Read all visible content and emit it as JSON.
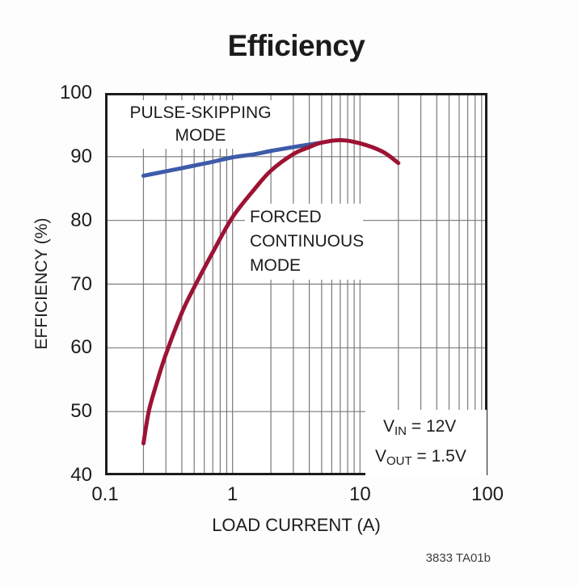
{
  "title": "Efficiency",
  "footnote": "3833 TA01b",
  "colors": {
    "pulse_skipping": "#3d5ba8",
    "forced_continuous": "#9d1333",
    "grid": "#7a7a7a",
    "axis": "#1c1c1c",
    "background": "#fdfdfd",
    "plot_background": "#ffffff"
  },
  "labels": {
    "pulse_skipping_line1": "PULSE-SKIPPING",
    "pulse_skipping_line2": "MODE",
    "forced_line1": "FORCED",
    "forced_line2": "CONTINUOUS",
    "forced_line3": "MODE"
  },
  "annotation": {
    "line1": {
      "pre": "V",
      "sub": "IN",
      "post": " = 12V"
    },
    "line2": {
      "pre": "V",
      "sub": "OUT",
      "post": " = 1.5V"
    }
  },
  "chart_data": {
    "type": "line",
    "title": "Efficiency",
    "xlabel": "LOAD CURRENT (A)",
    "ylabel": "EFFICIENCY (%)",
    "x_scale": "log",
    "xlim": [
      0.1,
      100
    ],
    "ylim": [
      40,
      100
    ],
    "x_ticks": [
      "0.1",
      "1",
      "10",
      "100"
    ],
    "y_ticks": [
      100,
      90,
      80,
      70,
      60,
      50,
      40
    ],
    "grid": true,
    "legend_position": "in-plot text labels",
    "series": [
      {
        "name": "PULSE-SKIPPING MODE",
        "color": "#3d5ba8",
        "x": [
          0.2,
          0.3,
          0.4,
          0.5,
          0.7,
          1,
          1.5,
          2,
          3,
          4,
          5
        ],
        "y": [
          87,
          87.7,
          88.2,
          88.6,
          89.2,
          89.9,
          90.4,
          90.9,
          91.5,
          91.9,
          92.2
        ]
      },
      {
        "name": "FORCED CONTINUOUS MODE",
        "color": "#9d1333",
        "x": [
          0.2,
          0.22,
          0.25,
          0.3,
          0.4,
          0.5,
          0.7,
          1,
          1.5,
          2,
          3,
          4,
          5,
          7,
          10,
          15,
          20
        ],
        "y": [
          45,
          50,
          54,
          59,
          65.5,
          69.5,
          75,
          80.5,
          85,
          87.8,
          90.4,
          91.5,
          92.2,
          92.6,
          92.1,
          90.8,
          89
        ]
      }
    ],
    "annotations": [
      "VIN = 12V",
      "VOUT = 1.5V"
    ]
  }
}
